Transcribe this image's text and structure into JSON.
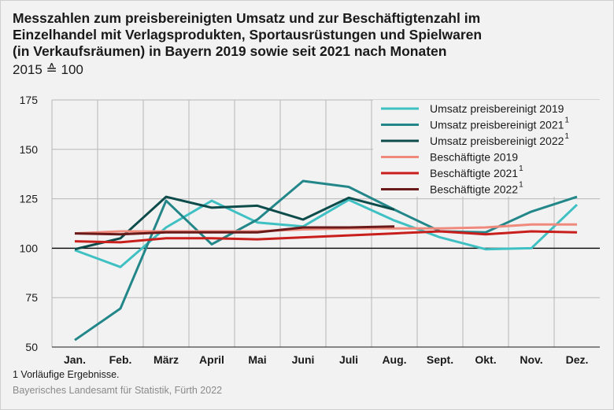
{
  "title_lines": [
    "Messzahlen zum preisbereinigten Umsatz und zur Beschäftigtenzahl im",
    "Einzelhandel mit Verlagsprodukten, Sportausrüstungen und Spielwaren",
    "(in Verkaufsräumen) in Bayern 2019 sowie seit 2021 nach Monaten"
  ],
  "subtitle": "2015 ≙ 100",
  "footnote": "1 Vorläufige Ergebnisse.",
  "source": "Bayerisches Landesamt für Statistik, Fürth 2022",
  "chart_data": {
    "type": "line",
    "categories": [
      "Jan.",
      "Feb.",
      "März",
      "April",
      "Mai",
      "Juni",
      "Juli",
      "Aug.",
      "Sept.",
      "Okt.",
      "Nov.",
      "Dez."
    ],
    "ylim": [
      50,
      175
    ],
    "yticks": [
      50,
      75,
      100,
      125,
      150,
      175
    ],
    "reference_line": 100,
    "grid": "horizontal",
    "legend_position": "top-right",
    "series": [
      {
        "name": "Umsatz preisbereinigt 2019",
        "sup": "",
        "color": "#3fc0c3",
        "values": [
          99,
          90.5,
          110.5,
          124,
          113,
          111,
          124.5,
          114,
          105.5,
          99.5,
          100,
          122
        ]
      },
      {
        "name": "Umsatz preisbereinigt 2021",
        "sup": "1",
        "color": "#23878a",
        "values": [
          53.5,
          69.5,
          124,
          102,
          114.5,
          134,
          131,
          119.5,
          108.5,
          108,
          118.5,
          126
        ]
      },
      {
        "name": "Umsatz preisbereinigt 2022",
        "sup": "1",
        "color": "#0d4c4b",
        "values": [
          99.5,
          105,
          126,
          120.5,
          121.5,
          114.5,
          125.5,
          119.5,
          null,
          null,
          null,
          null
        ]
      },
      {
        "name": "Beschäftigte 2019",
        "sup": "",
        "color": "#ef8a7d",
        "values": [
          107.5,
          108.5,
          108.5,
          108.5,
          108.5,
          109.5,
          110,
          110,
          110,
          110.5,
          112,
          112
        ]
      },
      {
        "name": "Beschäftigte 2021",
        "sup": "1",
        "color": "#c81f1c",
        "values": [
          103.5,
          103,
          105,
          105,
          104.5,
          105.5,
          106.5,
          107.5,
          108.5,
          107,
          108.5,
          108
        ]
      },
      {
        "name": "Beschäftigte 2022",
        "sup": "1",
        "color": "#6b1a1a",
        "values": [
          107.5,
          107,
          108,
          108,
          108,
          110.5,
          110.5,
          111,
          null,
          null,
          null,
          null
        ]
      }
    ]
  }
}
